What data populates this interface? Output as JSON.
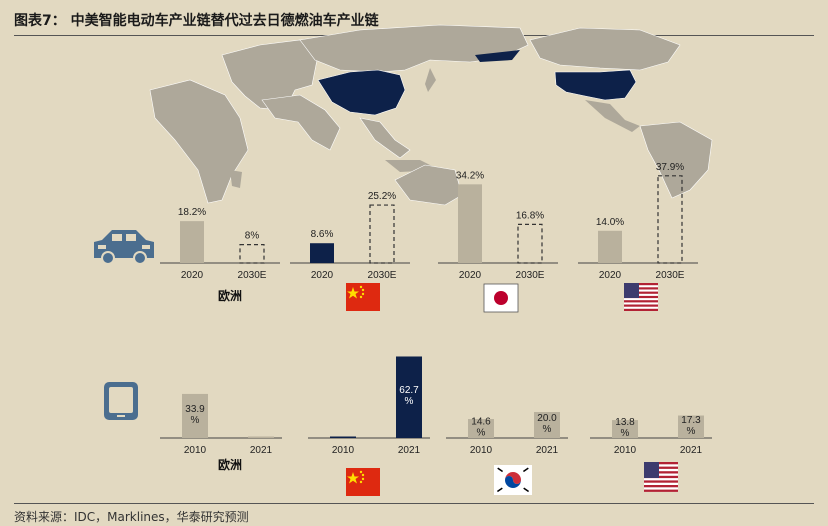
{
  "title": "图表7：   中美智能电动车产业链替代过去日德燃油车产业链",
  "source": "资料来源：IDC，Marklines，华泰研究预测",
  "map_icon": "world-map-china-usa-highlighted",
  "row_icons": [
    "car-icon",
    "tablet-icon"
  ],
  "colors": {
    "background": "#e2d9c1",
    "bar_gray": "#b9b19d",
    "highlight_navy": "#0d2149",
    "map_land": "#aea89a"
  },
  "chart_data": [
    {
      "type": "bar",
      "row": "ev",
      "groups": [
        {
          "region": "欧洲",
          "flag": "eu-text",
          "categories": [
            "2020",
            "2030E"
          ],
          "values": [
            18.2,
            8
          ],
          "labels": [
            "18.2%",
            "8%"
          ],
          "highlight": false
        },
        {
          "region": "中国",
          "flag": "china-flag",
          "categories": [
            "2020",
            "2030E"
          ],
          "values": [
            8.6,
            25.2
          ],
          "labels": [
            "8.6%",
            "25.2%"
          ],
          "highlight": true
        },
        {
          "region": "日本",
          "flag": "japan-flag",
          "categories": [
            "2020",
            "2030E"
          ],
          "values": [
            34.2,
            16.8
          ],
          "labels": [
            "34.2%",
            "16.8%"
          ],
          "highlight": false
        },
        {
          "region": "美国",
          "flag": "usa-flag",
          "categories": [
            "2020",
            "2030E"
          ],
          "values": [
            14.0,
            37.9
          ],
          "labels": [
            "14.0%",
            "37.9%"
          ],
          "highlight": false
        }
      ]
    },
    {
      "type": "bar",
      "row": "tablet",
      "groups": [
        {
          "region": "欧洲",
          "flag": "eu-text",
          "categories": [
            "2010",
            "2021"
          ],
          "values": [
            33.9,
            0
          ],
          "labels": [
            "33.9\n%",
            ""
          ],
          "highlight": false
        },
        {
          "region": "中国",
          "flag": "china-flag",
          "categories": [
            "2010",
            "2021"
          ],
          "values": [
            0,
            62.7
          ],
          "labels": [
            "",
            "62.7\n%"
          ],
          "highlight": true
        },
        {
          "region": "韩国",
          "flag": "korea-flag",
          "categories": [
            "2010",
            "2021"
          ],
          "values": [
            14.6,
            20.0
          ],
          "labels": [
            "14.6\n%",
            "20.0\n%"
          ],
          "highlight": false
        },
        {
          "region": "美国",
          "flag": "usa-flag",
          "categories": [
            "2010",
            "2021"
          ],
          "values": [
            13.8,
            17.3
          ],
          "labels": [
            "13.8\n%",
            "17.3\n%"
          ],
          "highlight": false
        }
      ]
    }
  ],
  "eu_label": "欧洲"
}
